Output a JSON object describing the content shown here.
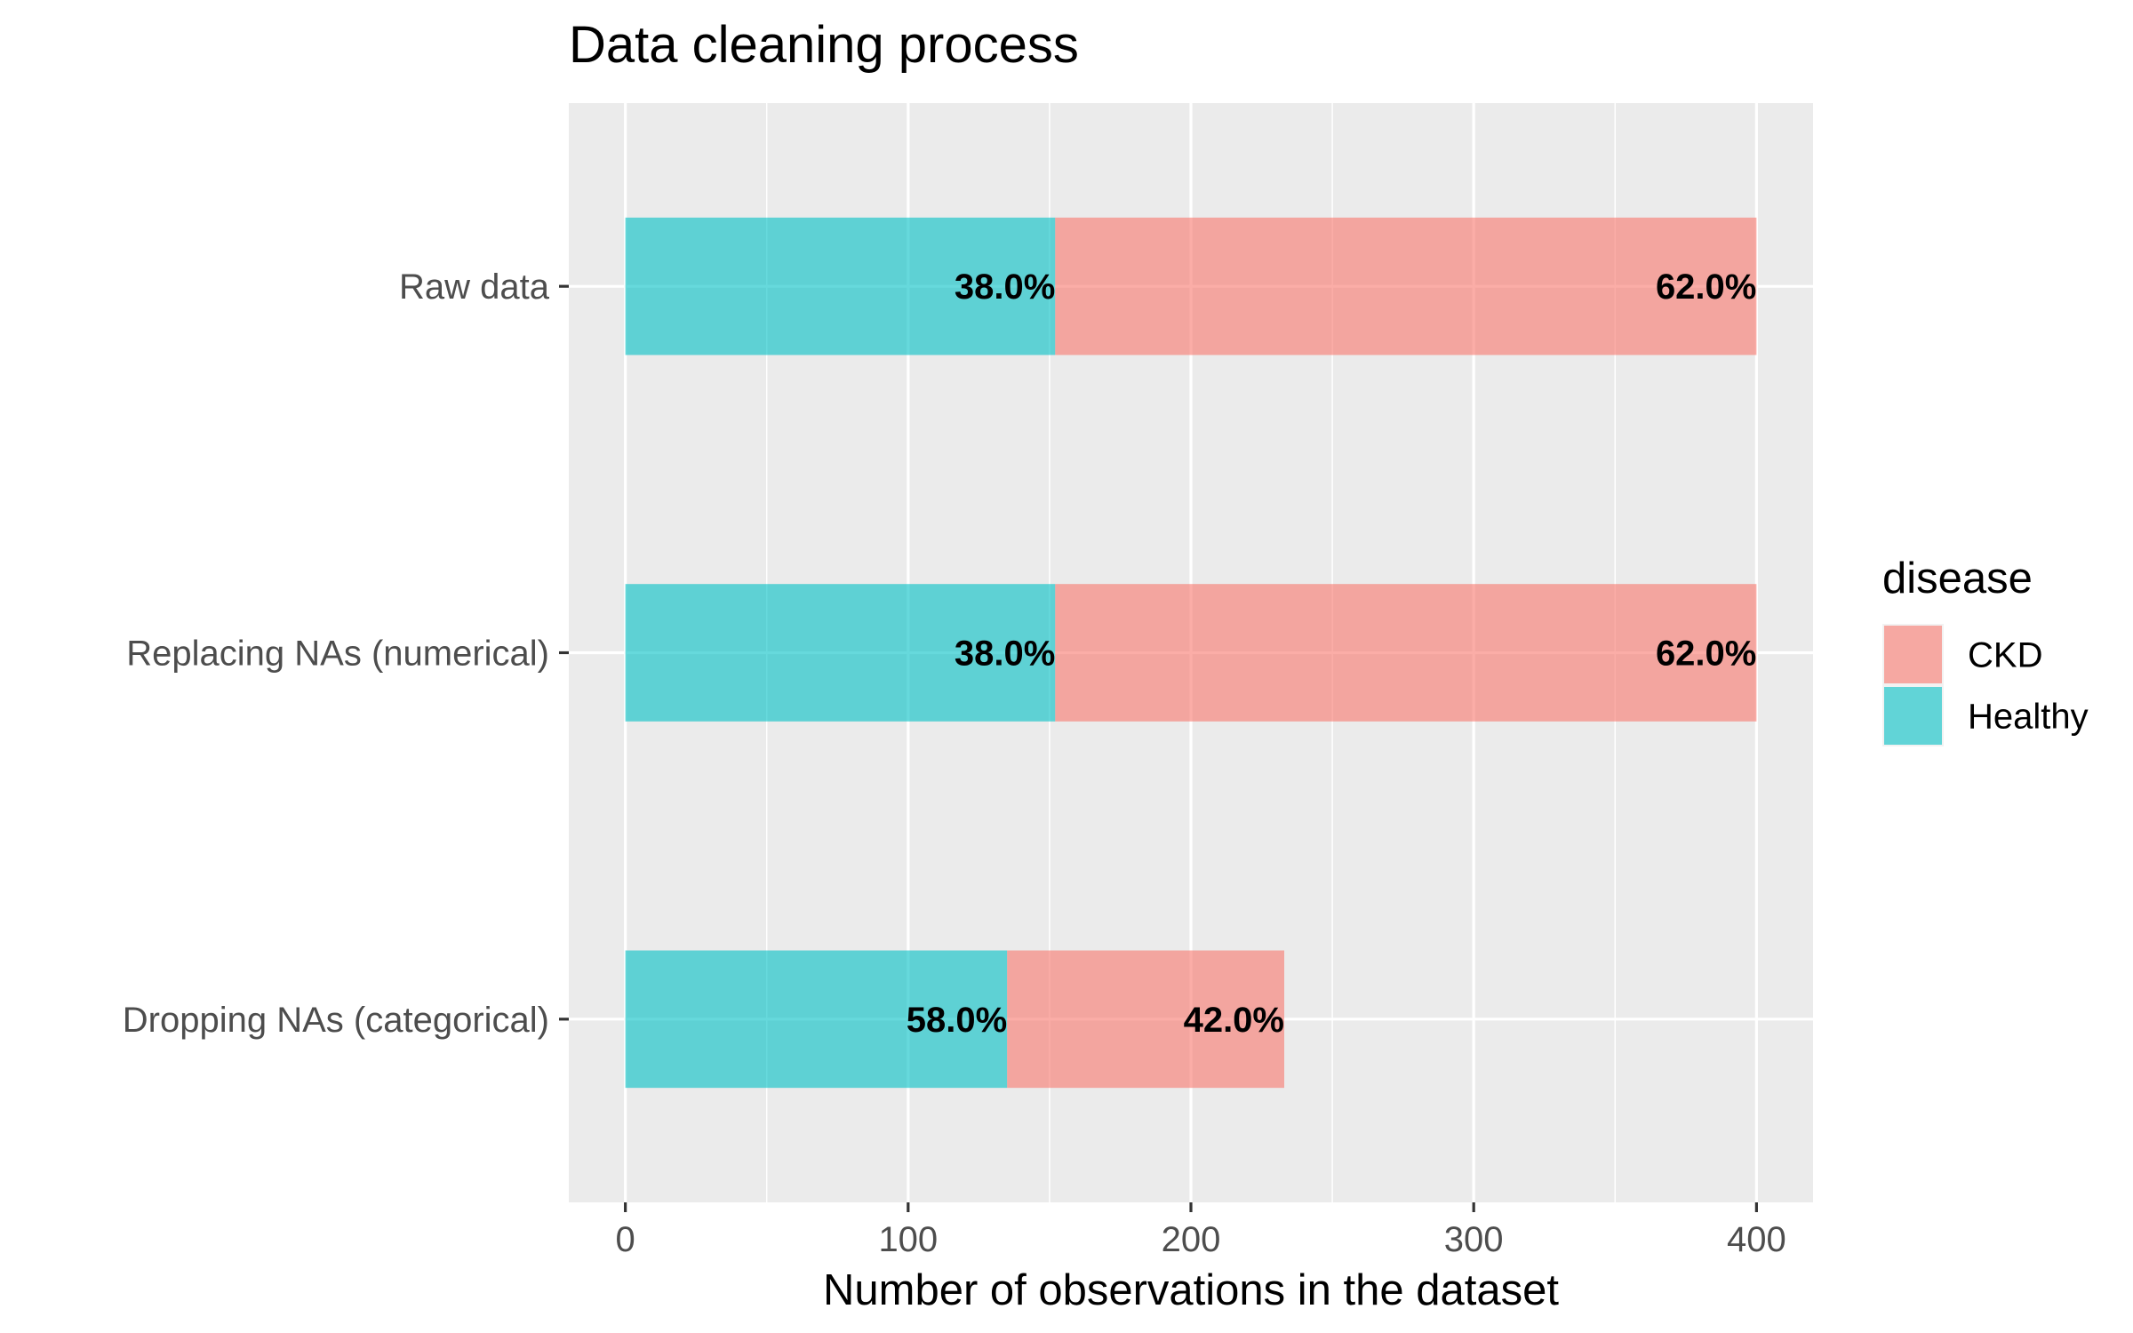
{
  "chart_data": {
    "type": "bar",
    "orientation": "horizontal",
    "stacked": true,
    "title": "Data cleaning process",
    "xlabel": "Number of observations in the dataset",
    "ylabel": "",
    "xlim": [
      -20,
      420
    ],
    "xticks": [
      0,
      100,
      200,
      300,
      400
    ],
    "categories": [
      "Raw data",
      "Replacing NAs (numerical)",
      "Dropping NAs (categorical)"
    ],
    "series": [
      {
        "name": "Healthy",
        "color": "#00BFC4",
        "values": [
          152,
          152,
          135
        ],
        "labels": [
          "38.0%",
          "38.0%",
          "58.0%"
        ]
      },
      {
        "name": "CKD",
        "color": "#F8766D",
        "values": [
          248,
          248,
          98
        ],
        "labels": [
          "62.0%",
          "62.0%",
          "42.0%"
        ]
      }
    ],
    "legend": {
      "title": "disease",
      "position": "right",
      "items": [
        "CKD",
        "Healthy"
      ]
    },
    "grid": true,
    "background": "#EBEBEB"
  }
}
